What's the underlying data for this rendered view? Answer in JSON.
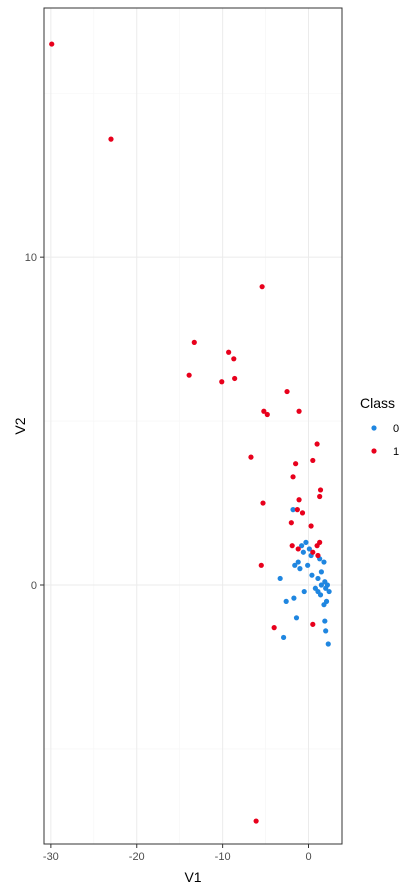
{
  "chart_data": {
    "type": "scatter",
    "xlabel": "V1",
    "ylabel": "V2",
    "xlim": [
      -30.8,
      3.9
    ],
    "ylim": [
      -7.9,
      17.6
    ],
    "x_ticks": [
      -30,
      -20,
      -10,
      0
    ],
    "y_ticks": [
      0,
      10
    ],
    "grid": true,
    "legend": {
      "title": "Class",
      "position": "right"
    },
    "series": [
      {
        "name": "0",
        "color": "#1f86e0",
        "points": [
          [
            -1.8,
            2.3
          ],
          [
            -0.8,
            1.2
          ],
          [
            -0.3,
            1.3
          ],
          [
            0.1,
            1.1
          ],
          [
            -0.6,
            1.0
          ],
          [
            0.3,
            0.9
          ],
          [
            -1.2,
            0.7
          ],
          [
            -1.6,
            0.6
          ],
          [
            -1.0,
            0.5
          ],
          [
            -0.1,
            0.6
          ],
          [
            1.3,
            0.8
          ],
          [
            1.8,
            0.7
          ],
          [
            0.4,
            0.3
          ],
          [
            1.1,
            0.2
          ],
          [
            1.5,
            0.4
          ],
          [
            1.9,
            0.1
          ],
          [
            2.2,
            0.0
          ],
          [
            2.0,
            -0.1
          ],
          [
            1.1,
            -0.2
          ],
          [
            1.4,
            -0.3
          ],
          [
            0.8,
            -0.1
          ],
          [
            -0.5,
            -0.2
          ],
          [
            -1.7,
            -0.4
          ],
          [
            -3.3,
            0.2
          ],
          [
            -2.6,
            -0.5
          ],
          [
            2.1,
            -0.5
          ],
          [
            1.8,
            -0.6
          ],
          [
            -1.4,
            -1.0
          ],
          [
            1.9,
            -1.1
          ],
          [
            -2.9,
            -1.6
          ],
          [
            2.0,
            -1.4
          ],
          [
            2.3,
            -1.8
          ],
          [
            1.5,
            0.0
          ],
          [
            2.4,
            -0.2
          ]
        ]
      },
      {
        "name": "1",
        "color": "#e8001c",
        "points": [
          [
            -29.9,
            16.5
          ],
          [
            -23.0,
            13.6
          ],
          [
            -5.4,
            9.1
          ],
          [
            -13.3,
            7.4
          ],
          [
            -9.3,
            7.1
          ],
          [
            -8.7,
            6.9
          ],
          [
            -13.9,
            6.4
          ],
          [
            -8.6,
            6.3
          ],
          [
            -10.1,
            6.2
          ],
          [
            -2.5,
            5.9
          ],
          [
            -5.2,
            5.3
          ],
          [
            -4.8,
            5.2
          ],
          [
            -1.1,
            5.3
          ],
          [
            -6.7,
            3.9
          ],
          [
            1.0,
            4.3
          ],
          [
            -1.5,
            3.7
          ],
          [
            0.5,
            3.8
          ],
          [
            -1.8,
            3.3
          ],
          [
            1.4,
            2.9
          ],
          [
            1.3,
            2.7
          ],
          [
            -1.1,
            2.6
          ],
          [
            -1.3,
            2.3
          ],
          [
            -0.7,
            2.2
          ],
          [
            -5.3,
            2.5
          ],
          [
            -2.0,
            1.9
          ],
          [
            0.3,
            1.8
          ],
          [
            1.3,
            1.3
          ],
          [
            -1.9,
            1.2
          ],
          [
            1.0,
            1.2
          ],
          [
            -1.2,
            1.1
          ],
          [
            0.5,
            1.0
          ],
          [
            1.1,
            0.9
          ],
          [
            -5.5,
            0.6
          ],
          [
            -4.0,
            -1.3
          ],
          [
            0.5,
            -1.2
          ],
          [
            -6.1,
            -7.2
          ]
        ]
      }
    ]
  }
}
